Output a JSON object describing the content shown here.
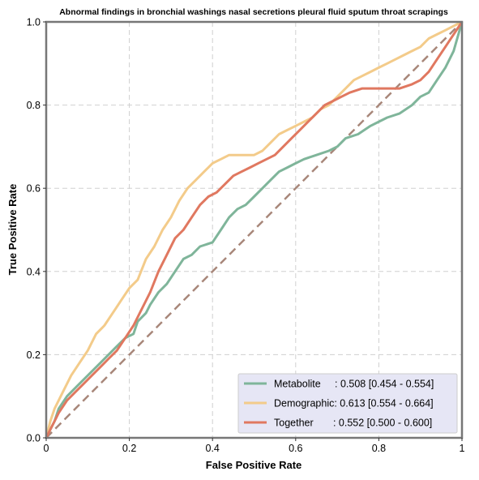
{
  "chart_data": {
    "type": "line",
    "title": "Abnormal findings in bronchial washings nasal secretions pleural fluid sputum throat scrapings",
    "xlabel": "False Positive Rate",
    "ylabel": "True Positive Rate",
    "xlim": [
      0,
      1
    ],
    "ylim": [
      0,
      1
    ],
    "xticks": [
      "0",
      "0.2",
      "0.4",
      "0.6",
      "0.8",
      "1"
    ],
    "yticks": [
      "0.0",
      "0.2",
      "0.4",
      "0.6",
      "0.8",
      "1.0"
    ],
    "grid": true,
    "legend_position": "bottom-right",
    "diagonal": {
      "x": [
        0,
        1
      ],
      "y": [
        0,
        1
      ],
      "color": "#a8877a",
      "style": "dashed"
    },
    "series": [
      {
        "name": "Metabolite",
        "legend_text": "Metabolite     : 0.508 [0.454 - 0.554]",
        "color": "#7fb59a",
        "x": [
          0,
          0.01,
          0.02,
          0.03,
          0.05,
          0.08,
          0.1,
          0.13,
          0.15,
          0.17,
          0.19,
          0.21,
          0.22,
          0.24,
          0.25,
          0.27,
          0.29,
          0.31,
          0.33,
          0.35,
          0.37,
          0.4,
          0.42,
          0.44,
          0.46,
          0.48,
          0.5,
          0.52,
          0.54,
          0.56,
          0.58,
          0.6,
          0.62,
          0.65,
          0.68,
          0.7,
          0.72,
          0.75,
          0.78,
          0.8,
          0.82,
          0.85,
          0.88,
          0.9,
          0.92,
          0.94,
          0.96,
          0.98,
          1.0
        ],
        "y": [
          0,
          0.02,
          0.04,
          0.07,
          0.1,
          0.13,
          0.15,
          0.18,
          0.2,
          0.22,
          0.24,
          0.25,
          0.28,
          0.3,
          0.32,
          0.35,
          0.37,
          0.4,
          0.43,
          0.44,
          0.46,
          0.47,
          0.5,
          0.53,
          0.55,
          0.56,
          0.58,
          0.6,
          0.62,
          0.64,
          0.65,
          0.66,
          0.67,
          0.68,
          0.69,
          0.7,
          0.72,
          0.73,
          0.75,
          0.76,
          0.77,
          0.78,
          0.8,
          0.82,
          0.83,
          0.86,
          0.89,
          0.93,
          1.0
        ]
      },
      {
        "name": "Demographic",
        "legend_text": "Demographic: 0.613 [0.554 - 0.664]",
        "color": "#f3cb8a",
        "x": [
          0,
          0.01,
          0.02,
          0.04,
          0.06,
          0.08,
          0.1,
          0.12,
          0.14,
          0.16,
          0.18,
          0.2,
          0.22,
          0.24,
          0.26,
          0.28,
          0.3,
          0.32,
          0.34,
          0.36,
          0.38,
          0.4,
          0.42,
          0.44,
          0.46,
          0.48,
          0.5,
          0.52,
          0.54,
          0.56,
          0.58,
          0.6,
          0.62,
          0.64,
          0.66,
          0.68,
          0.7,
          0.72,
          0.74,
          0.76,
          0.78,
          0.8,
          0.82,
          0.84,
          0.86,
          0.88,
          0.9,
          0.92,
          0.94,
          0.96,
          0.98,
          1.0
        ],
        "y": [
          0,
          0.04,
          0.07,
          0.11,
          0.15,
          0.18,
          0.21,
          0.25,
          0.27,
          0.3,
          0.33,
          0.36,
          0.38,
          0.43,
          0.46,
          0.5,
          0.53,
          0.57,
          0.6,
          0.62,
          0.64,
          0.66,
          0.67,
          0.68,
          0.68,
          0.68,
          0.68,
          0.69,
          0.71,
          0.73,
          0.74,
          0.75,
          0.76,
          0.77,
          0.79,
          0.8,
          0.82,
          0.84,
          0.86,
          0.87,
          0.88,
          0.89,
          0.9,
          0.91,
          0.92,
          0.93,
          0.94,
          0.96,
          0.97,
          0.98,
          0.99,
          1.0
        ]
      },
      {
        "name": "Together",
        "legend_text": "Together       : 0.552 [0.500 - 0.600]",
        "color": "#e07860",
        "x": [
          0,
          0.01,
          0.02,
          0.03,
          0.05,
          0.07,
          0.09,
          0.11,
          0.13,
          0.15,
          0.17,
          0.19,
          0.21,
          0.23,
          0.25,
          0.27,
          0.29,
          0.31,
          0.33,
          0.35,
          0.37,
          0.39,
          0.41,
          0.43,
          0.45,
          0.47,
          0.49,
          0.51,
          0.53,
          0.55,
          0.57,
          0.59,
          0.61,
          0.63,
          0.65,
          0.67,
          0.69,
          0.71,
          0.73,
          0.76,
          0.79,
          0.82,
          0.85,
          0.88,
          0.9,
          0.92,
          0.94,
          0.96,
          0.98,
          1.0
        ],
        "y": [
          0,
          0.02,
          0.04,
          0.06,
          0.09,
          0.11,
          0.13,
          0.15,
          0.17,
          0.19,
          0.21,
          0.24,
          0.27,
          0.31,
          0.35,
          0.4,
          0.44,
          0.48,
          0.5,
          0.53,
          0.56,
          0.58,
          0.59,
          0.61,
          0.63,
          0.64,
          0.65,
          0.66,
          0.67,
          0.68,
          0.7,
          0.72,
          0.74,
          0.76,
          0.78,
          0.8,
          0.81,
          0.82,
          0.83,
          0.84,
          0.84,
          0.84,
          0.84,
          0.85,
          0.86,
          0.88,
          0.91,
          0.94,
          0.97,
          1.0
        ]
      }
    ]
  }
}
